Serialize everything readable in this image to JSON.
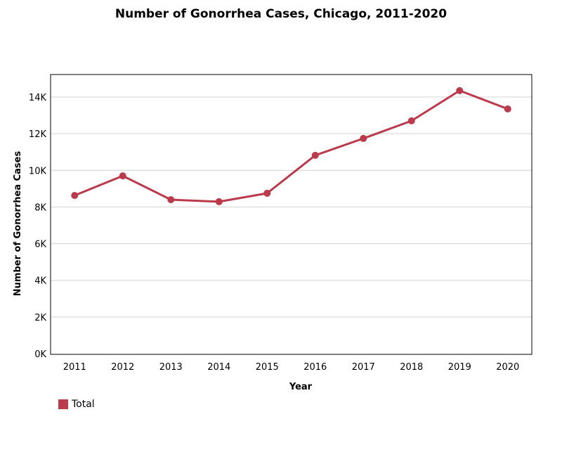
{
  "chart_data": {
    "type": "line",
    "title": "Number of Gonorrhea Cases, Chicago, 2011-2020",
    "xlabel": "Year",
    "ylabel": "Number of Gonorrhea Cases",
    "categories": [
      "2011",
      "2012",
      "2013",
      "2014",
      "2015",
      "2016",
      "2017",
      "2018",
      "2019",
      "2020"
    ],
    "series": [
      {
        "name": "Total",
        "color": "#bb3a4c",
        "values": [
          8630,
          9700,
          8400,
          8290,
          8750,
          10820,
          11740,
          12700,
          14350,
          13350
        ]
      }
    ],
    "ylim": [
      0,
      15200
    ],
    "yticks": [
      0,
      2000,
      4000,
      6000,
      8000,
      10000,
      12000,
      14000
    ],
    "ytick_labels": [
      "0K",
      "2K",
      "4K",
      "6K",
      "8K",
      "10K",
      "12K",
      "14K"
    ],
    "grid": true,
    "legend_position": "bottom-left"
  },
  "legend": {
    "label": "Total"
  }
}
